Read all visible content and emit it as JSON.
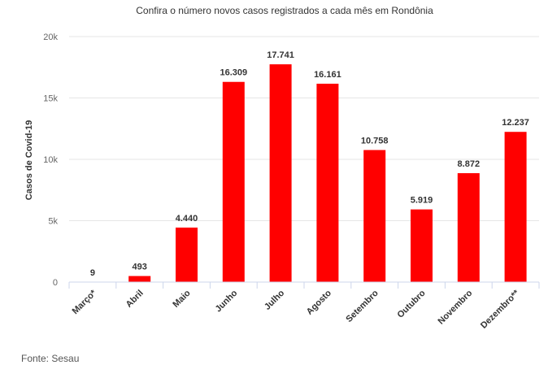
{
  "chart_data": {
    "type": "bar",
    "title": "Confira o número novos casos registrados a cada mês em Rondônia",
    "xlabel": "",
    "ylabel": "Casos de Covid-19",
    "categories": [
      "Março*",
      "Abril",
      "Maio",
      "Junho",
      "Julho",
      "Agosto",
      "Setembro",
      "Outubro",
      "Novembro",
      "Dezembro**"
    ],
    "values": [
      9,
      493,
      4440,
      16309,
      17741,
      16161,
      10758,
      5919,
      8872,
      12237
    ],
    "value_labels": [
      "9",
      "493",
      "4.440",
      "16.309",
      "17.741",
      "16.161",
      "10.758",
      "5.919",
      "8.872",
      "12.237"
    ],
    "ylim": [
      0,
      20000
    ],
    "y_ticks": [
      0,
      5000,
      10000,
      15000,
      20000
    ],
    "y_tick_labels": [
      "0",
      "5k",
      "10k",
      "15k",
      "20k"
    ],
    "grid": true,
    "legend": "none",
    "bar_color": "#ff0000"
  },
  "source": "Fonte: Sesau"
}
